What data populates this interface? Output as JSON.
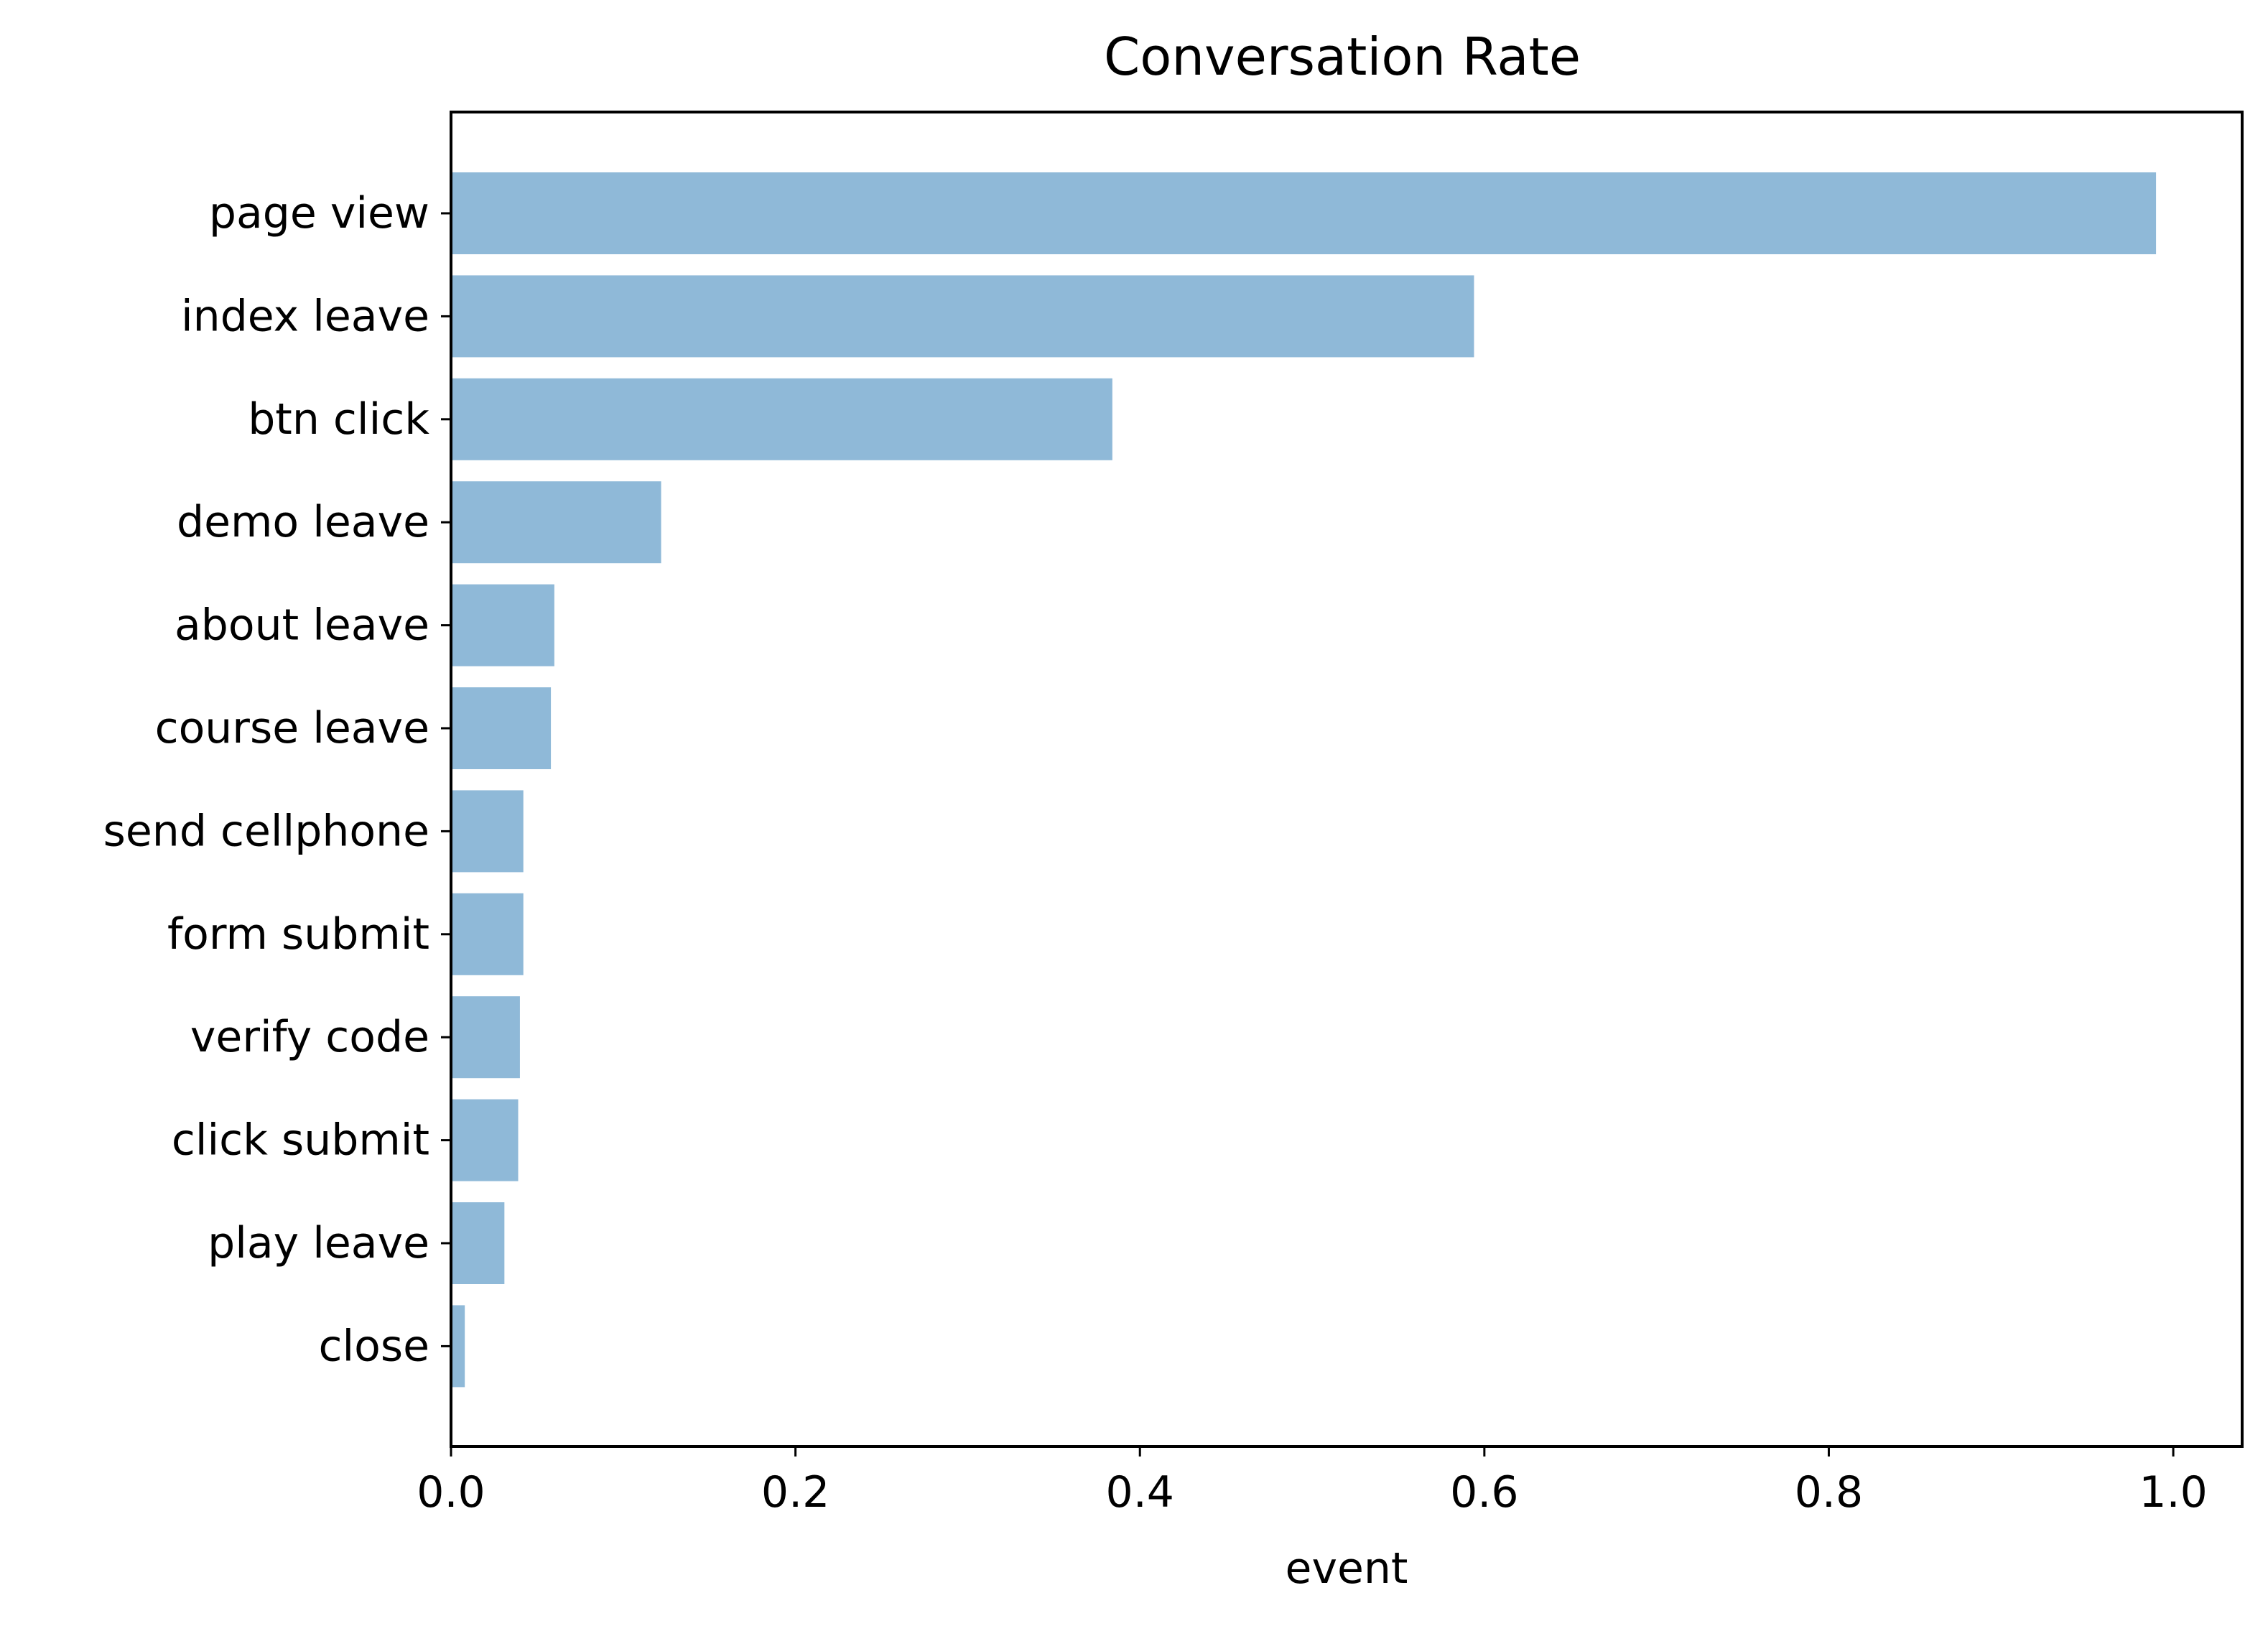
{
  "chart_data": {
    "type": "bar",
    "orientation": "horizontal",
    "title": "Conversation Rate",
    "xlabel": "event",
    "ylabel": "",
    "categories": [
      "page view",
      "index leave",
      "btn click",
      "demo leave",
      "about leave",
      "course leave",
      "send cellphone",
      "form submit",
      "verify code",
      "click submit",
      "play leave",
      "close"
    ],
    "values": [
      0.99,
      0.594,
      0.384,
      0.122,
      0.06,
      0.058,
      0.042,
      0.042,
      0.04,
      0.039,
      0.031,
      0.008
    ],
    "xlim": [
      0,
      1.04
    ],
    "xticks": [
      0.0,
      0.2,
      0.4,
      0.6,
      0.8,
      1.0
    ],
    "xtick_labels": [
      "0.0",
      "0.2",
      "0.4",
      "0.6",
      "0.8",
      "1.0"
    ],
    "grid": false,
    "legend": "none",
    "bar_color": "#8fb9d8"
  }
}
